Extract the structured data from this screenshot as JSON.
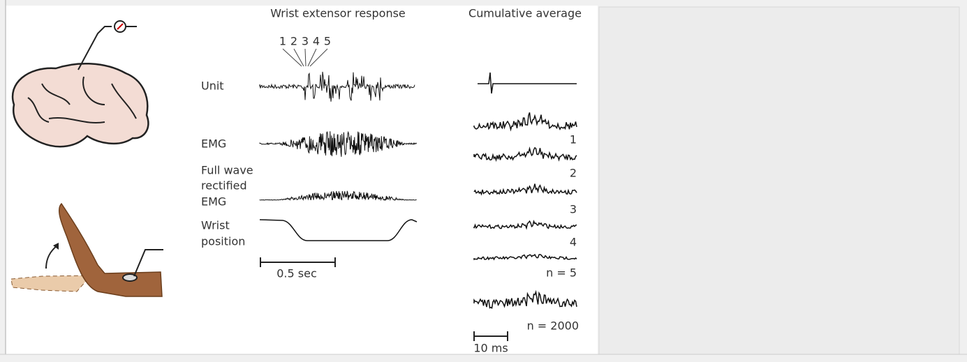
{
  "titles": {
    "response": "Wrist extensor response",
    "average": "Cumulative average"
  },
  "spike_labels": [
    "1",
    "2",
    "3",
    "4",
    "5"
  ],
  "rows": {
    "unit": [
      "Unit"
    ],
    "emg": [
      "EMG"
    ],
    "rectified": [
      "Full wave",
      "rectified",
      "EMG"
    ],
    "position": [
      "Wrist",
      "position"
    ]
  },
  "scale_bars": {
    "response": "0.5 sec",
    "average": "10 ms"
  },
  "average_labels": [
    "1",
    "2",
    "3",
    "4",
    "n = 5",
    "n = 2000"
  ]
}
